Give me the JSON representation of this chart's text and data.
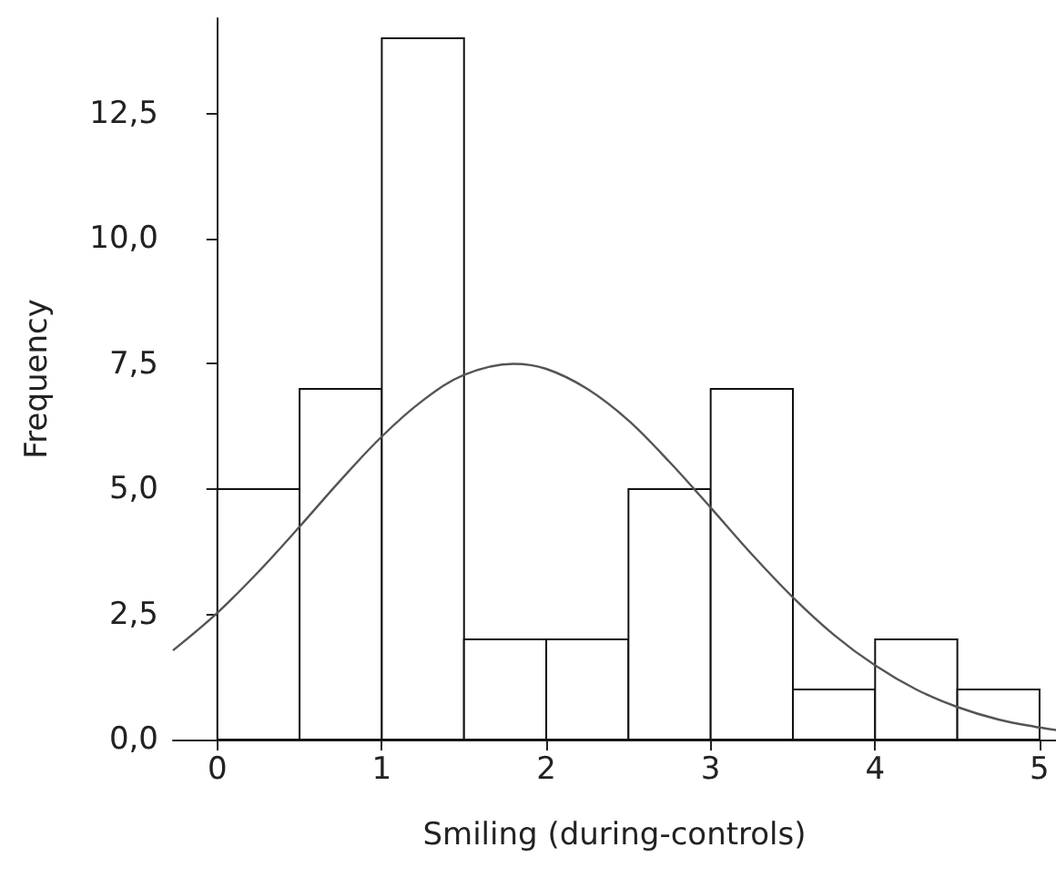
{
  "chart_data": {
    "type": "histogram",
    "xlabel": "Smiling (during-controls)",
    "ylabel": "Frequency",
    "bins": [
      0,
      0.5,
      1,
      1.5,
      2,
      2.5,
      3,
      3.5,
      4,
      4.5,
      5
    ],
    "values": [
      5,
      7,
      14,
      2,
      2,
      5,
      7,
      1,
      2,
      1
    ],
    "color": "#ffffff",
    "series": [
      {
        "type": "line",
        "color": "#555555",
        "x": [
          -0.27,
          0,
          0.25,
          0.5,
          0.75,
          1,
          1.25,
          1.5,
          1.8,
          2,
          2.25,
          2.5,
          2.75,
          3,
          3.25,
          3.5,
          3.75,
          4,
          4.25,
          4.5,
          4.75,
          5,
          5.1
        ],
        "values": [
          1.78,
          2.53,
          3.35,
          4.25,
          5.18,
          6.05,
          6.77,
          7.28,
          7.5,
          7.4,
          7.0,
          6.37,
          5.54,
          4.63,
          3.7,
          2.84,
          2.09,
          1.48,
          1.0,
          0.65,
          0.4,
          0.24,
          0.19
        ]
      }
    ],
    "xlim": [
      -0.27,
      5.1
    ],
    "xticks": [
      0,
      1,
      2,
      3,
      4,
      5
    ],
    "ylim": [
      0,
      14.4
    ],
    "yticks": [
      {
        "value": 0,
        "label": "0,0"
      },
      {
        "value": 2.5,
        "label": "2,5"
      },
      {
        "value": 5,
        "label": "5,0"
      },
      {
        "value": 7.5,
        "label": "7,5"
      },
      {
        "value": 10,
        "label": "10,0"
      },
      {
        "value": 12.5,
        "label": "12,5"
      }
    ],
    "grid": false,
    "marker": "none",
    "line_style": "solid"
  }
}
